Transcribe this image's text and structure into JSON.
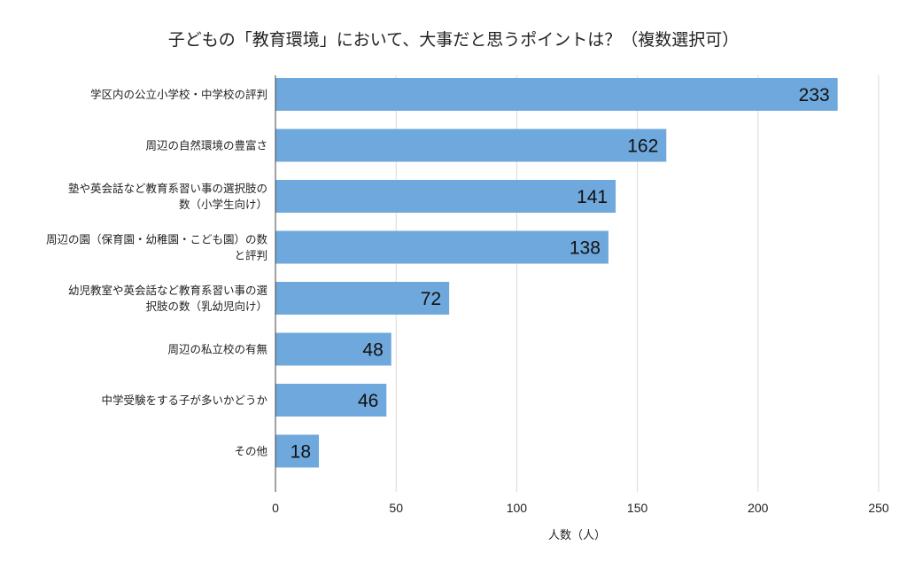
{
  "chart_data": {
    "type": "bar",
    "orientation": "horizontal",
    "title": "子どもの「教育環境」において、大事だと思うポイントは？（複数選択可）",
    "xlabel": "人数（人）",
    "ylabel": "",
    "categories": [
      "学区内の公立小学校・中学校の評判",
      "周辺の自然環境の豊富さ",
      "塾や英会話など教育系習い事の選択肢の数（小学生向け）",
      "周辺の園（保育園・幼稚園・こども園）の数と評判",
      "幼児教室や英会話など教育系習い事の選択肢の数（乳幼児向け）",
      "周辺の私立校の有無",
      "中学受験をする子が多いかどうか",
      "その他"
    ],
    "category_label_lines": [
      [
        "学区内の公立小学校・中学校の評判"
      ],
      [
        "周辺の自然環境の豊富さ"
      ],
      [
        "塾や英会話など教育系習い事の選択肢の",
        "数（小学生向け）"
      ],
      [
        "周辺の園（保育園・幼稚園・こども園）の数",
        "と評判"
      ],
      [
        "幼児教室や英会話など教育系習い事の選",
        "択肢の数（乳幼児向け）"
      ],
      [
        "周辺の私立校の有無"
      ],
      [
        "中学受験をする子が多いかどうか"
      ],
      [
        "その他"
      ]
    ],
    "values": [
      233,
      162,
      141,
      138,
      72,
      48,
      46,
      18
    ],
    "xlim": [
      0,
      250
    ],
    "xticks": [
      0,
      50,
      100,
      150,
      200,
      250
    ],
    "grid": true,
    "data_labels": true,
    "colors": {
      "bar": "#6fa8dc",
      "grid": "#d9d9d9",
      "axis": "#444444"
    }
  }
}
